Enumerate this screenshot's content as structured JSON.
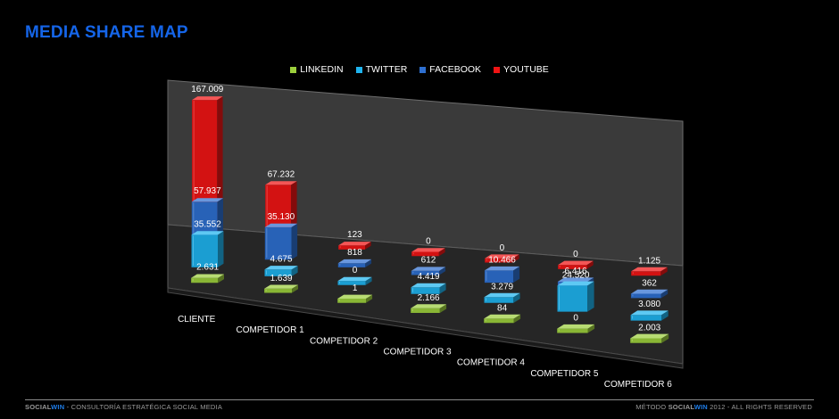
{
  "slide": {
    "title": "MEDIA SHARE MAP"
  },
  "footer": {
    "left_brand_a": "SOCIAL",
    "left_brand_b": "WIN",
    "left_text": " - CONSULTORÍA ESTRATÉGICA SOCIAL MEDIA",
    "right_text_a": "MÉTODO ",
    "right_brand_a": "SOCIAL",
    "right_brand_b": "WIN",
    "right_text_b": " 2012 - ALL RIGHTS RESERVED"
  },
  "colors": {
    "LINKEDIN": "#9ccf3c",
    "TWITTER": "#1fb4ef",
    "FACEBOOK": "#2e6fd0",
    "YOUTUBE": "#f01414",
    "title": "#1565e8"
  },
  "chart_data": {
    "type": "bar",
    "subtype": "3d-column",
    "categories": [
      "CLIENTE",
      "COMPETIDOR 1",
      "COMPETIDOR 2",
      "COMPETIDOR 3",
      "COMPETIDOR 4",
      "COMPETIDOR 5",
      "COMPETIDOR 6"
    ],
    "series": [
      {
        "name": "LINKEDIN",
        "values": [
          2631,
          1639,
          1,
          2166,
          84,
          0,
          2003
        ],
        "labels": [
          "2.631",
          "1.639",
          "1",
          "2.166",
          "84",
          "0",
          "2.003"
        ]
      },
      {
        "name": "TWITTER",
        "values": [
          35552,
          4675,
          0,
          4419,
          3279,
          24520,
          3080
        ],
        "labels": [
          "35.552",
          "4.675",
          "0",
          "4.419",
          "3.279",
          "24.520",
          "3.080"
        ]
      },
      {
        "name": "FACEBOOK",
        "values": [
          57937,
          35130,
          818,
          612,
          10466,
          6416,
          362
        ],
        "labels": [
          "57.937",
          "35.130",
          "818",
          "612",
          "10.466",
          "6.416",
          "362"
        ]
      },
      {
        "name": "YOUTUBE",
        "values": [
          167009,
          67232,
          123,
          0,
          0,
          0,
          1125
        ],
        "labels": [
          "167.009",
          "67.232",
          "123",
          "0",
          "0",
          "0",
          "1.125"
        ]
      }
    ],
    "legend_position": "top",
    "grid": false
  }
}
